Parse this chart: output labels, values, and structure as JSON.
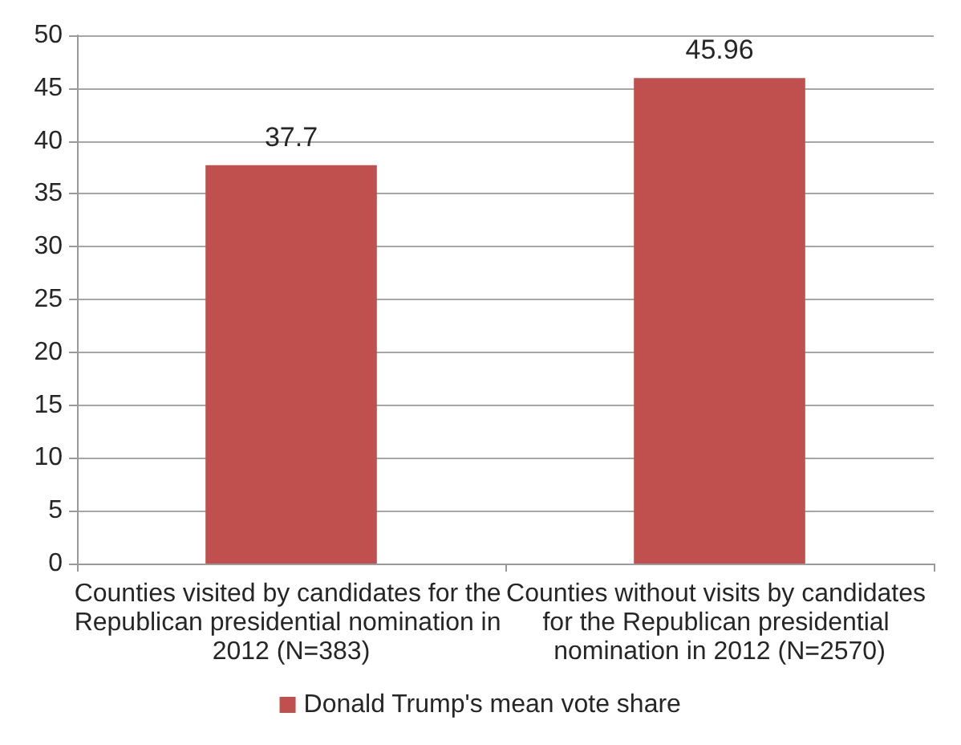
{
  "chart_data": {
    "type": "bar",
    "categories": [
      "Counties visited by candidates for the Republican presidential nomination in 2012 (N=383)",
      "Counties without visits by candidates for the Republican presidential nomination in 2012 (N=2570)"
    ],
    "series": [
      {
        "name": "Donald Trump's mean vote share",
        "color": "#c0504d",
        "values": [
          37.7,
          45.96
        ]
      }
    ],
    "ylim": [
      0,
      50
    ],
    "yticks": [
      0,
      5,
      10,
      15,
      20,
      25,
      30,
      35,
      40,
      45,
      50
    ],
    "grid": "y",
    "legend": "bottom",
    "data_labels": true
  }
}
